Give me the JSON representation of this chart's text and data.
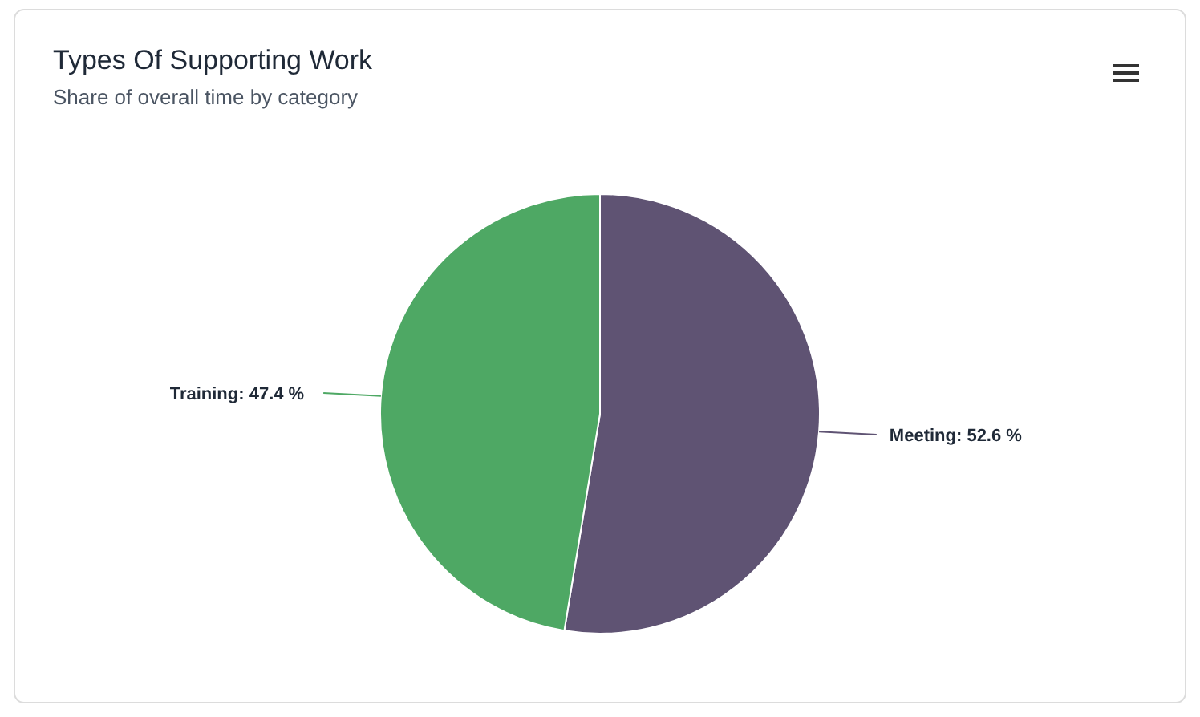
{
  "chart_data": {
    "type": "pie",
    "title": "Types Of Supporting Work",
    "subtitle": "Share of overall time by category",
    "categories": [
      "Meeting",
      "Training"
    ],
    "values": [
      52.6,
      47.4
    ],
    "colors": [
      "#5f5373",
      "#4ea864"
    ],
    "value_labels": [
      "52.6 %",
      "47.4 %"
    ],
    "legend": false
  }
}
